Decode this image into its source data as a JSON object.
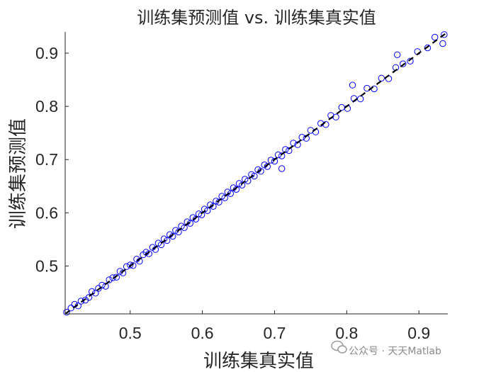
{
  "chart_data": {
    "type": "scatter",
    "title": "训练集预测值 vs. 训练集真实值",
    "xlabel": "训练集真实值",
    "ylabel": "训练集预测值",
    "xlim": [
      0.41,
      0.94
    ],
    "ylim": [
      0.41,
      0.94
    ],
    "xticks": [
      "0.5",
      "0.6",
      "0.7",
      "0.8",
      "0.9"
    ],
    "yticks": [
      "0.5",
      "0.6",
      "0.7",
      "0.8",
      "0.9"
    ],
    "marker_color": "#0000ff",
    "reference_line": {
      "style": "dashed",
      "color": "#000000",
      "from": [
        0.41,
        0.41
      ],
      "to": [
        0.94,
        0.94
      ]
    },
    "grid": false,
    "legend": "none",
    "points": [
      [
        0.412,
        0.413
      ],
      [
        0.418,
        0.421
      ],
      [
        0.423,
        0.428
      ],
      [
        0.428,
        0.425
      ],
      [
        0.432,
        0.434
      ],
      [
        0.438,
        0.436
      ],
      [
        0.443,
        0.441
      ],
      [
        0.447,
        0.452
      ],
      [
        0.452,
        0.449
      ],
      [
        0.456,
        0.458
      ],
      [
        0.461,
        0.464
      ],
      [
        0.466,
        0.462
      ],
      [
        0.471,
        0.474
      ],
      [
        0.476,
        0.478
      ],
      [
        0.481,
        0.479
      ],
      [
        0.486,
        0.49
      ],
      [
        0.49,
        0.487
      ],
      [
        0.495,
        0.499
      ],
      [
        0.5,
        0.502
      ],
      [
        0.504,
        0.501
      ],
      [
        0.509,
        0.513
      ],
      [
        0.513,
        0.509
      ],
      [
        0.518,
        0.521
      ],
      [
        0.522,
        0.526
      ],
      [
        0.526,
        0.523
      ],
      [
        0.531,
        0.535
      ],
      [
        0.535,
        0.531
      ],
      [
        0.539,
        0.543
      ],
      [
        0.543,
        0.54
      ],
      [
        0.547,
        0.551
      ],
      [
        0.551,
        0.548
      ],
      [
        0.555,
        0.559
      ],
      [
        0.559,
        0.556
      ],
      [
        0.563,
        0.567
      ],
      [
        0.567,
        0.564
      ],
      [
        0.571,
        0.575
      ],
      [
        0.575,
        0.572
      ],
      [
        0.579,
        0.583
      ],
      [
        0.583,
        0.58
      ],
      [
        0.587,
        0.591
      ],
      [
        0.591,
        0.588
      ],
      [
        0.595,
        0.598
      ],
      [
        0.599,
        0.596
      ],
      [
        0.603,
        0.607
      ],
      [
        0.607,
        0.604
      ],
      [
        0.611,
        0.615
      ],
      [
        0.615,
        0.612
      ],
      [
        0.619,
        0.622
      ],
      [
        0.623,
        0.62
      ],
      [
        0.627,
        0.631
      ],
      [
        0.631,
        0.628
      ],
      [
        0.635,
        0.639
      ],
      [
        0.639,
        0.636
      ],
      [
        0.643,
        0.647
      ],
      [
        0.647,
        0.644
      ],
      [
        0.651,
        0.655
      ],
      [
        0.655,
        0.652
      ],
      [
        0.659,
        0.663
      ],
      [
        0.663,
        0.66
      ],
      [
        0.668,
        0.672
      ],
      [
        0.672,
        0.669
      ],
      [
        0.677,
        0.681
      ],
      [
        0.681,
        0.678
      ],
      [
        0.686,
        0.69
      ],
      [
        0.69,
        0.687
      ],
      [
        0.695,
        0.699
      ],
      [
        0.7,
        0.697
      ],
      [
        0.705,
        0.709
      ],
      [
        0.71,
        0.707
      ],
      [
        0.715,
        0.719
      ],
      [
        0.72,
        0.717
      ],
      [
        0.726,
        0.731
      ],
      [
        0.732,
        0.728
      ],
      [
        0.738,
        0.742
      ],
      [
        0.744,
        0.74
      ],
      [
        0.75,
        0.755
      ],
      [
        0.757,
        0.752
      ],
      [
        0.764,
        0.768
      ],
      [
        0.771,
        0.766
      ],
      [
        0.778,
        0.783
      ],
      [
        0.785,
        0.78
      ],
      [
        0.793,
        0.798
      ],
      [
        0.801,
        0.796
      ],
      [
        0.81,
        0.815
      ],
      [
        0.819,
        0.814
      ],
      [
        0.828,
        0.834
      ],
      [
        0.838,
        0.833
      ],
      [
        0.848,
        0.853
      ],
      [
        0.858,
        0.852
      ],
      [
        0.868,
        0.873
      ],
      [
        0.878,
        0.88
      ],
      [
        0.888,
        0.885
      ],
      [
        0.898,
        0.903
      ],
      [
        0.912,
        0.91
      ],
      [
        0.922,
        0.93
      ],
      [
        0.935,
        0.935
      ],
      [
        0.933,
        0.918
      ],
      [
        0.87,
        0.897
      ],
      [
        0.71,
        0.683
      ],
      [
        0.808,
        0.84
      ]
    ]
  },
  "watermark": {
    "text": "公众号 · 天天Matlab",
    "icon": "wechat-icon"
  }
}
